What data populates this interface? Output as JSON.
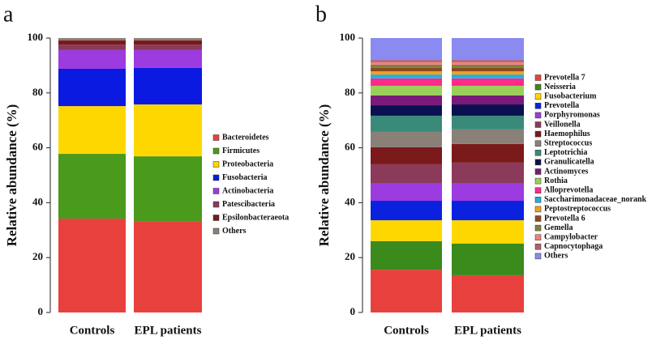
{
  "chart_data": [
    {
      "type": "stacked_bar",
      "panel_label": "a",
      "ylabel": "Relative abundance (%)",
      "categories": [
        "Controls",
        "EPL patients"
      ],
      "ylim": [
        0,
        100
      ],
      "yticks": [
        0,
        20,
        40,
        60,
        80,
        100
      ],
      "series": [
        {
          "name": "Bacteroidetes",
          "color": "#e8413d",
          "values": [
            34.2,
            33.3
          ]
        },
        {
          "name": "Firmicutes",
          "color": "#4a9a1c",
          "values": [
            23.6,
            23.6
          ]
        },
        {
          "name": "Proteobacteria",
          "color": "#ffd700",
          "values": [
            17.4,
            18.9
          ]
        },
        {
          "name": "Fusobacteria",
          "color": "#0a1ae0",
          "values": [
            13.6,
            13.3
          ]
        },
        {
          "name": "Actinobacteria",
          "color": "#9b3be0",
          "values": [
            6.8,
            6.5
          ]
        },
        {
          "name": "Patescibacteria",
          "color": "#8b3a5a",
          "values": [
            2.0,
            2.0
          ]
        },
        {
          "name": "Epsilonbacteraeota",
          "color": "#7a1a1a",
          "values": [
            1.5,
            1.5
          ]
        },
        {
          "name": "Others",
          "color": "#8a8078",
          "values": [
            0.9,
            0.9
          ]
        }
      ]
    },
    {
      "type": "stacked_bar",
      "panel_label": "b",
      "ylabel": "Relative abundance (%)",
      "categories": [
        "Controls",
        "EPL patients"
      ],
      "ylim": [
        0,
        100
      ],
      "yticks": [
        0,
        20,
        40,
        60,
        80,
        100
      ],
      "series": [
        {
          "name": "Prevotella 7",
          "color": "#e8413d",
          "values": [
            15.6,
            13.6
          ]
        },
        {
          "name": "Neisseria",
          "color": "#3a8a1c",
          "values": [
            10.4,
            11.5
          ]
        },
        {
          "name": "Fusobacterium",
          "color": "#ffd700",
          "values": [
            7.6,
            8.5
          ]
        },
        {
          "name": "Prevotella",
          "color": "#0a22dd",
          "values": [
            7.1,
            7.1
          ]
        },
        {
          "name": "Porphyromonas",
          "color": "#9b3be0",
          "values": [
            6.5,
            6.5
          ]
        },
        {
          "name": "Veillonella",
          "color": "#8b3a5a",
          "values": [
            6.8,
            7.4
          ]
        },
        {
          "name": "Haemophilus",
          "color": "#7a1a1a",
          "values": [
            6.2,
            6.8
          ]
        },
        {
          "name": "Streptococcus",
          "color": "#8a8078",
          "values": [
            5.6,
            5.3
          ]
        },
        {
          "name": "Leptotrichia",
          "color": "#3a8a7a",
          "values": [
            5.9,
            5.0
          ]
        },
        {
          "name": "Granulicatella",
          "color": "#0a1050",
          "values": [
            3.8,
            4.1
          ]
        },
        {
          "name": "Actinomyces",
          "color": "#7a1a7a",
          "values": [
            3.6,
            3.3
          ]
        },
        {
          "name": "Rothia",
          "color": "#9ad05a",
          "values": [
            3.5,
            3.5
          ]
        },
        {
          "name": "Alloprevotella",
          "color": "#ff2a8a",
          "values": [
            2.7,
            2.7
          ]
        },
        {
          "name": "Saccharimonadaceae_norank",
          "color": "#20b0e0",
          "values": [
            1.4,
            1.4
          ]
        },
        {
          "name": "Peptostreptococcus",
          "color": "#f0a020",
          "values": [
            1.2,
            1.2
          ]
        },
        {
          "name": "Prevotella 6",
          "color": "#8a4a20",
          "values": [
            1.2,
            1.2
          ]
        },
        {
          "name": "Gemella",
          "color": "#808040",
          "values": [
            1.2,
            1.2
          ]
        },
        {
          "name": "Campylobacter",
          "color": "#f08080",
          "values": [
            0.9,
            0.9
          ]
        },
        {
          "name": "Capnocytophaga",
          "color": "#b06070",
          "values": [
            0.8,
            0.8
          ]
        },
        {
          "name": "Others",
          "color": "#8a8af0",
          "values": [
            8.0,
            8.0
          ]
        }
      ]
    }
  ]
}
